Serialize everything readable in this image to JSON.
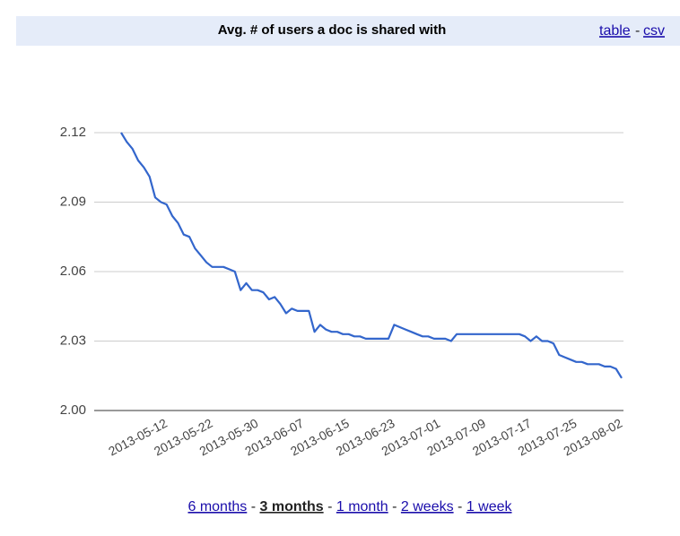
{
  "chart_data": {
    "type": "line",
    "title": "Avg. # of users a doc is shared with",
    "categories": [
      null,
      null,
      null,
      null,
      null,
      null,
      null,
      null,
      "2013-05-12",
      null,
      null,
      null,
      null,
      null,
      null,
      null,
      "2013-05-22",
      null,
      null,
      null,
      null,
      null,
      null,
      null,
      "2013-05-30",
      null,
      null,
      null,
      null,
      null,
      null,
      null,
      "2013-06-07",
      null,
      null,
      null,
      null,
      null,
      null,
      null,
      "2013-06-15",
      null,
      null,
      null,
      null,
      null,
      null,
      null,
      "2013-06-23",
      null,
      null,
      null,
      null,
      null,
      null,
      null,
      "2013-07-01",
      null,
      null,
      null,
      null,
      null,
      null,
      null,
      "2013-07-09",
      null,
      null,
      null,
      null,
      null,
      null,
      null,
      "2013-07-17",
      null,
      null,
      null,
      null,
      null,
      null,
      null,
      "2013-07-25",
      null,
      null,
      null,
      null,
      null,
      null,
      null,
      "2013-08-02"
    ],
    "values": [
      2.12,
      2.116,
      2.113,
      2.108,
      2.105,
      2.101,
      2.092,
      2.09,
      2.089,
      2.084,
      2.081,
      2.076,
      2.075,
      2.07,
      2.067,
      2.064,
      2.062,
      2.062,
      2.062,
      2.061,
      2.06,
      2.052,
      2.055,
      2.052,
      2.052,
      2.051,
      2.048,
      2.049,
      2.046,
      2.042,
      2.044,
      2.043,
      2.043,
      2.043,
      2.034,
      2.037,
      2.035,
      2.034,
      2.034,
      2.033,
      2.033,
      2.032,
      2.032,
      2.031,
      2.031,
      2.031,
      2.031,
      2.031,
      2.037,
      2.036,
      2.035,
      2.034,
      2.033,
      2.032,
      2.032,
      2.031,
      2.031,
      2.031,
      2.03,
      2.033,
      2.033,
      2.033,
      2.033,
      2.033,
      2.033,
      2.033,
      2.033,
      2.033,
      2.033,
      2.033,
      2.033,
      2.032,
      2.03,
      2.032,
      2.03,
      2.03,
      2.029,
      2.024,
      2.023,
      2.022,
      2.021,
      2.021,
      2.02,
      2.02,
      2.02,
      2.019,
      2.019,
      2.018,
      2.014
    ],
    "color": "#3366cc",
    "ylim": [
      2.0,
      2.12
    ],
    "yticks": [
      {
        "value": 2.0,
        "label": "2.00"
      },
      2.03,
      2.06,
      2.09,
      2.12
    ],
    "grid": true
  },
  "header_links": {
    "table": "table",
    "separator": "-",
    "csv": "csv"
  },
  "ranges": [
    "6 months",
    "3 months",
    "1 month",
    "2 weeks",
    "1 week"
  ],
  "range_separator": "-",
  "selected_range_index": 1
}
